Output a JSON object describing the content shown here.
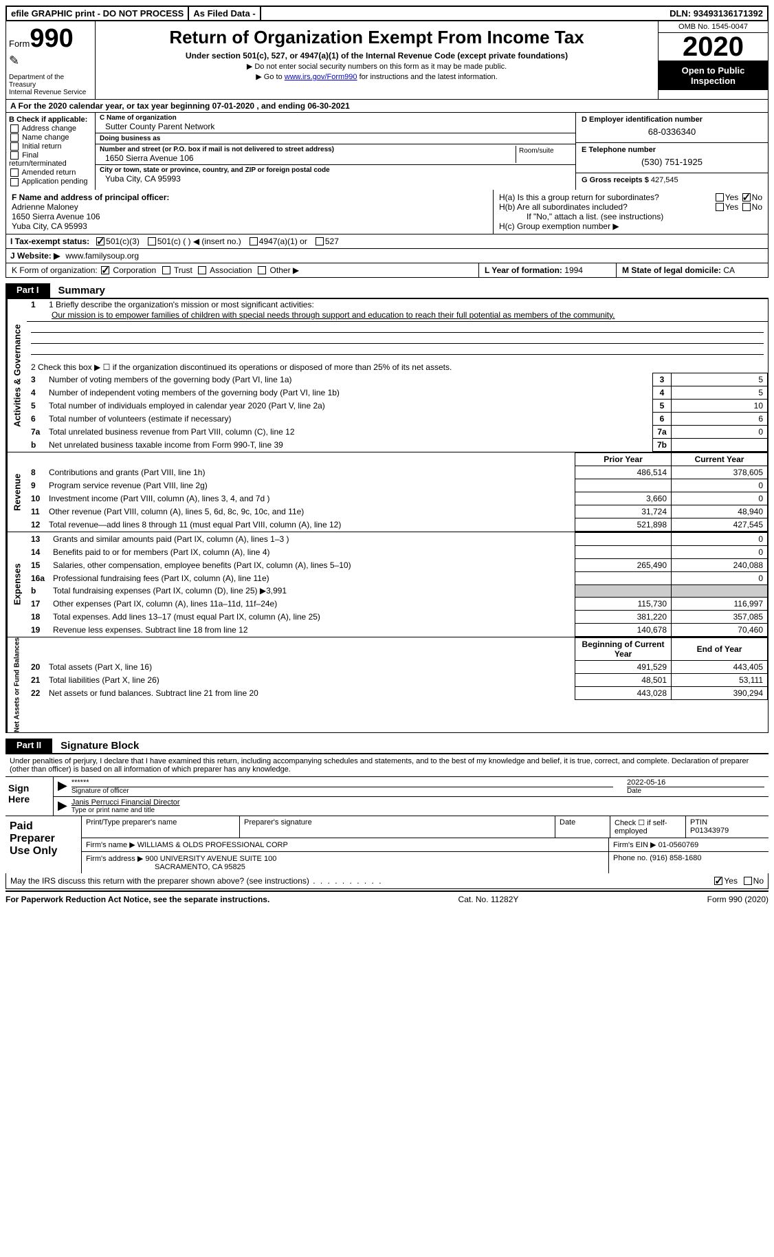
{
  "top": {
    "efile": "efile GRAPHIC print - DO NOT PROCESS",
    "asfiled": "As Filed Data -",
    "dln_label": "DLN:",
    "dln": "93493136171392"
  },
  "header": {
    "form_word": "Form",
    "form_num": "990",
    "dept": "Department of the Treasury\nInternal Revenue Service",
    "title": "Return of Organization Exempt From Income Tax",
    "sub": "Under section 501(c), 527, or 4947(a)(1) of the Internal Revenue Code (except private foundations)",
    "note1": "▶ Do not enter social security numbers on this form as it may be made public.",
    "note2_pre": "▶ Go to ",
    "note2_link": "www.irs.gov/Form990",
    "note2_post": " for instructions and the latest information.",
    "omb": "OMB No. 1545-0047",
    "year": "2020",
    "open": "Open to Public Inspection"
  },
  "rowA": "A   For the 2020 calendar year, or tax year beginning 07-01-2020   , and ending 06-30-2021",
  "B": {
    "hdr": "B Check if applicable:",
    "items": [
      "Address change",
      "Name change",
      "Initial return",
      "Final return/terminated",
      "Amended return",
      "Application pending"
    ]
  },
  "C": {
    "name_lbl": "C Name of organization",
    "name": "Sutter County Parent Network",
    "dba_lbl": "Doing business as",
    "dba": "",
    "addr_lbl": "Number and street (or P.O. box if mail is not delivered to street address)",
    "addr": "1650 Sierra Avenue 106",
    "room_lbl": "Room/suite",
    "city_lbl": "City or town, state or province, country, and ZIP or foreign postal code",
    "city": "Yuba City, CA  95993"
  },
  "D": {
    "ein_lbl": "D Employer identification number",
    "ein": "68-0336340",
    "tel_lbl": "E Telephone number",
    "tel": "(530) 751-1925",
    "gross_lbl": "G Gross receipts $",
    "gross": "427,545"
  },
  "F": {
    "lbl": "F   Name and address of principal officer:",
    "name": "Adrienne Maloney",
    "addr1": "1650 Sierra Avenue 106",
    "addr2": "Yuba City, CA  95993"
  },
  "H": {
    "a": "H(a)  Is this a group return for subordinates?",
    "b": "H(b)  Are all subordinates included?",
    "note": "If \"No,\" attach a list. (see instructions)",
    "c": "H(c)  Group exemption number ▶"
  },
  "I": {
    "lbl": "I   Tax-exempt status:",
    "opts": [
      "501(c)(3)",
      "501(c) (   ) ◀ (insert no.)",
      "4947(a)(1) or",
      "527"
    ]
  },
  "J": {
    "lbl": "J   Website: ▶",
    "val": "www.familysoup.org"
  },
  "K": {
    "lbl": "K Form of organization:",
    "opts": [
      "Corporation",
      "Trust",
      "Association",
      "Other ▶"
    ]
  },
  "L": {
    "lbl": "L Year of formation:",
    "val": "1994"
  },
  "M": {
    "lbl": "M State of legal domicile:",
    "val": "CA"
  },
  "part1": {
    "tab": "Part I",
    "title": "Summary"
  },
  "summary": {
    "line1_lbl": "1 Briefly describe the organization's mission or most significant activities:",
    "mission": "Our mission is to empower families of children with special needs through support and education to reach their full potential as members of the community.",
    "line2": "2   Check this box ▶ ☐ if the organization discontinued its operations or disposed of more than 25% of its net assets.",
    "rows_top": [
      {
        "n": "3",
        "t": "Number of voting members of the governing body (Part VI, line 1a)",
        "box": "3",
        "v": "5"
      },
      {
        "n": "4",
        "t": "Number of independent voting members of the governing body (Part VI, line 1b)",
        "box": "4",
        "v": "5"
      },
      {
        "n": "5",
        "t": "Total number of individuals employed in calendar year 2020 (Part V, line 2a)",
        "box": "5",
        "v": "10"
      },
      {
        "n": "6",
        "t": "Total number of volunteers (estimate if necessary)",
        "box": "6",
        "v": "6"
      },
      {
        "n": "7a",
        "t": "Total unrelated business revenue from Part VIII, column (C), line 12",
        "box": "7a",
        "v": "0"
      },
      {
        "n": "b",
        "t": "Net unrelated business taxable income from Form 990-T, line 39",
        "box": "7b",
        "v": ""
      }
    ],
    "col_prior": "Prior Year",
    "col_current": "Current Year",
    "revenue": [
      {
        "n": "8",
        "t": "Contributions and grants (Part VIII, line 1h)",
        "p": "486,514",
        "c": "378,605"
      },
      {
        "n": "9",
        "t": "Program service revenue (Part VIII, line 2g)",
        "p": "",
        "c": "0"
      },
      {
        "n": "10",
        "t": "Investment income (Part VIII, column (A), lines 3, 4, and 7d )",
        "p": "3,660",
        "c": "0"
      },
      {
        "n": "11",
        "t": "Other revenue (Part VIII, column (A), lines 5, 6d, 8c, 9c, 10c, and 11e)",
        "p": "31,724",
        "c": "48,940"
      },
      {
        "n": "12",
        "t": "Total revenue—add lines 8 through 11 (must equal Part VIII, column (A), line 12)",
        "p": "521,898",
        "c": "427,545"
      }
    ],
    "expenses": [
      {
        "n": "13",
        "t": "Grants and similar amounts paid (Part IX, column (A), lines 1–3 )",
        "p": "",
        "c": "0"
      },
      {
        "n": "14",
        "t": "Benefits paid to or for members (Part IX, column (A), line 4)",
        "p": "",
        "c": "0"
      },
      {
        "n": "15",
        "t": "Salaries, other compensation, employee benefits (Part IX, column (A), lines 5–10)",
        "p": "265,490",
        "c": "240,088"
      },
      {
        "n": "16a",
        "t": "Professional fundraising fees (Part IX, column (A), line 11e)",
        "p": "",
        "c": "0"
      },
      {
        "n": "b",
        "t": "Total fundraising expenses (Part IX, column (D), line 25) ▶3,991",
        "p": "—",
        "c": "—"
      },
      {
        "n": "17",
        "t": "Other expenses (Part IX, column (A), lines 11a–11d, 11f–24e)",
        "p": "115,730",
        "c": "116,997"
      },
      {
        "n": "18",
        "t": "Total expenses. Add lines 13–17 (must equal Part IX, column (A), line 25)",
        "p": "381,220",
        "c": "357,085"
      },
      {
        "n": "19",
        "t": "Revenue less expenses. Subtract line 18 from line 12",
        "p": "140,678",
        "c": "70,460"
      }
    ],
    "col_begin": "Beginning of Current Year",
    "col_end": "End of Year",
    "netassets": [
      {
        "n": "20",
        "t": "Total assets (Part X, line 16)",
        "p": "491,529",
        "c": "443,405"
      },
      {
        "n": "21",
        "t": "Total liabilities (Part X, line 26)",
        "p": "48,501",
        "c": "53,111"
      },
      {
        "n": "22",
        "t": "Net assets or fund balances. Subtract line 21 from line 20",
        "p": "443,028",
        "c": "390,294"
      }
    ],
    "vlabels": {
      "gov": "Activities & Governance",
      "rev": "Revenue",
      "exp": "Expenses",
      "net": "Net Assets or Fund Balances"
    }
  },
  "part2": {
    "tab": "Part II",
    "title": "Signature Block"
  },
  "sig": {
    "decl": "Under penalties of perjury, I declare that I have examined this return, including accompanying schedules and statements, and to the best of my knowledge and belief, it is true, correct, and complete. Declaration of preparer (other than officer) is based on all information of which preparer has any knowledge.",
    "sign_here": "Sign Here",
    "stars": "******",
    "sig_officer": "Signature of officer",
    "date": "2022-05-16",
    "date_lbl": "Date",
    "name_title": "Janis Perrucci Financial Director",
    "name_title_lbl": "Type or print name and title"
  },
  "prep": {
    "label": "Paid Preparer Use Only",
    "h1": "Print/Type preparer's name",
    "h2": "Preparer's signature",
    "h3": "Date",
    "h4": "Check ☐ if self-employed",
    "h5_lbl": "PTIN",
    "ptin": "P01343979",
    "firm_lbl": "Firm's name      ▶",
    "firm": "WILLIAMS & OLDS PROFESSIONAL CORP",
    "ein_lbl": "Firm's EIN ▶",
    "ein": "01-0560769",
    "addr_lbl": "Firm's address ▶",
    "addr1": "900 UNIVERSITY AVENUE SUITE 100",
    "addr2": "SACRAMENTO, CA  95825",
    "phone_lbl": "Phone no.",
    "phone": "(916) 858-1680"
  },
  "discuss": "May the IRS discuss this return with the preparer shown above? (see instructions)",
  "footer": {
    "left": "For Paperwork Reduction Act Notice, see the separate instructions.",
    "mid": "Cat. No. 11282Y",
    "right": "Form 990 (2020)"
  }
}
